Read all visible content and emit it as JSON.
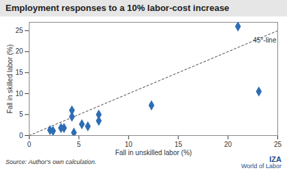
{
  "chart_data": {
    "type": "scatter",
    "title": "Employment responses to a 10% labor-cost increase",
    "x_label": "Fall in unskilled labor (%)",
    "y_label": "Fall in skilled labor (%)",
    "x": [
      2.1,
      2.4,
      3.2,
      3.5,
      4.3,
      4.3,
      4.5,
      5.3,
      5.9,
      7.0,
      7.0,
      12.3,
      21.0,
      23.1
    ],
    "values": [
      1.3,
      1.1,
      1.8,
      1.8,
      6.0,
      4.5,
      0.7,
      2.7,
      2.2,
      5.0,
      3.5,
      7.2,
      26.0,
      10.5
    ],
    "color": "#2e6db4",
    "marker": "diamond",
    "xlim": [
      0,
      25
    ],
    "xticks": [
      0,
      5,
      10,
      15,
      20,
      25
    ],
    "ylim": [
      0,
      27
    ],
    "yticks": [
      0,
      5,
      10,
      15,
      20,
      25
    ],
    "grid": false,
    "reference_line": {
      "label": "45°-line",
      "x": [
        0,
        25
      ],
      "y": [
        0,
        25
      ],
      "color": "#444444",
      "line_style": "dashed"
    },
    "source": "Source: Author's own calculation.",
    "logo": [
      "IZA",
      "World of Labor"
    ]
  }
}
